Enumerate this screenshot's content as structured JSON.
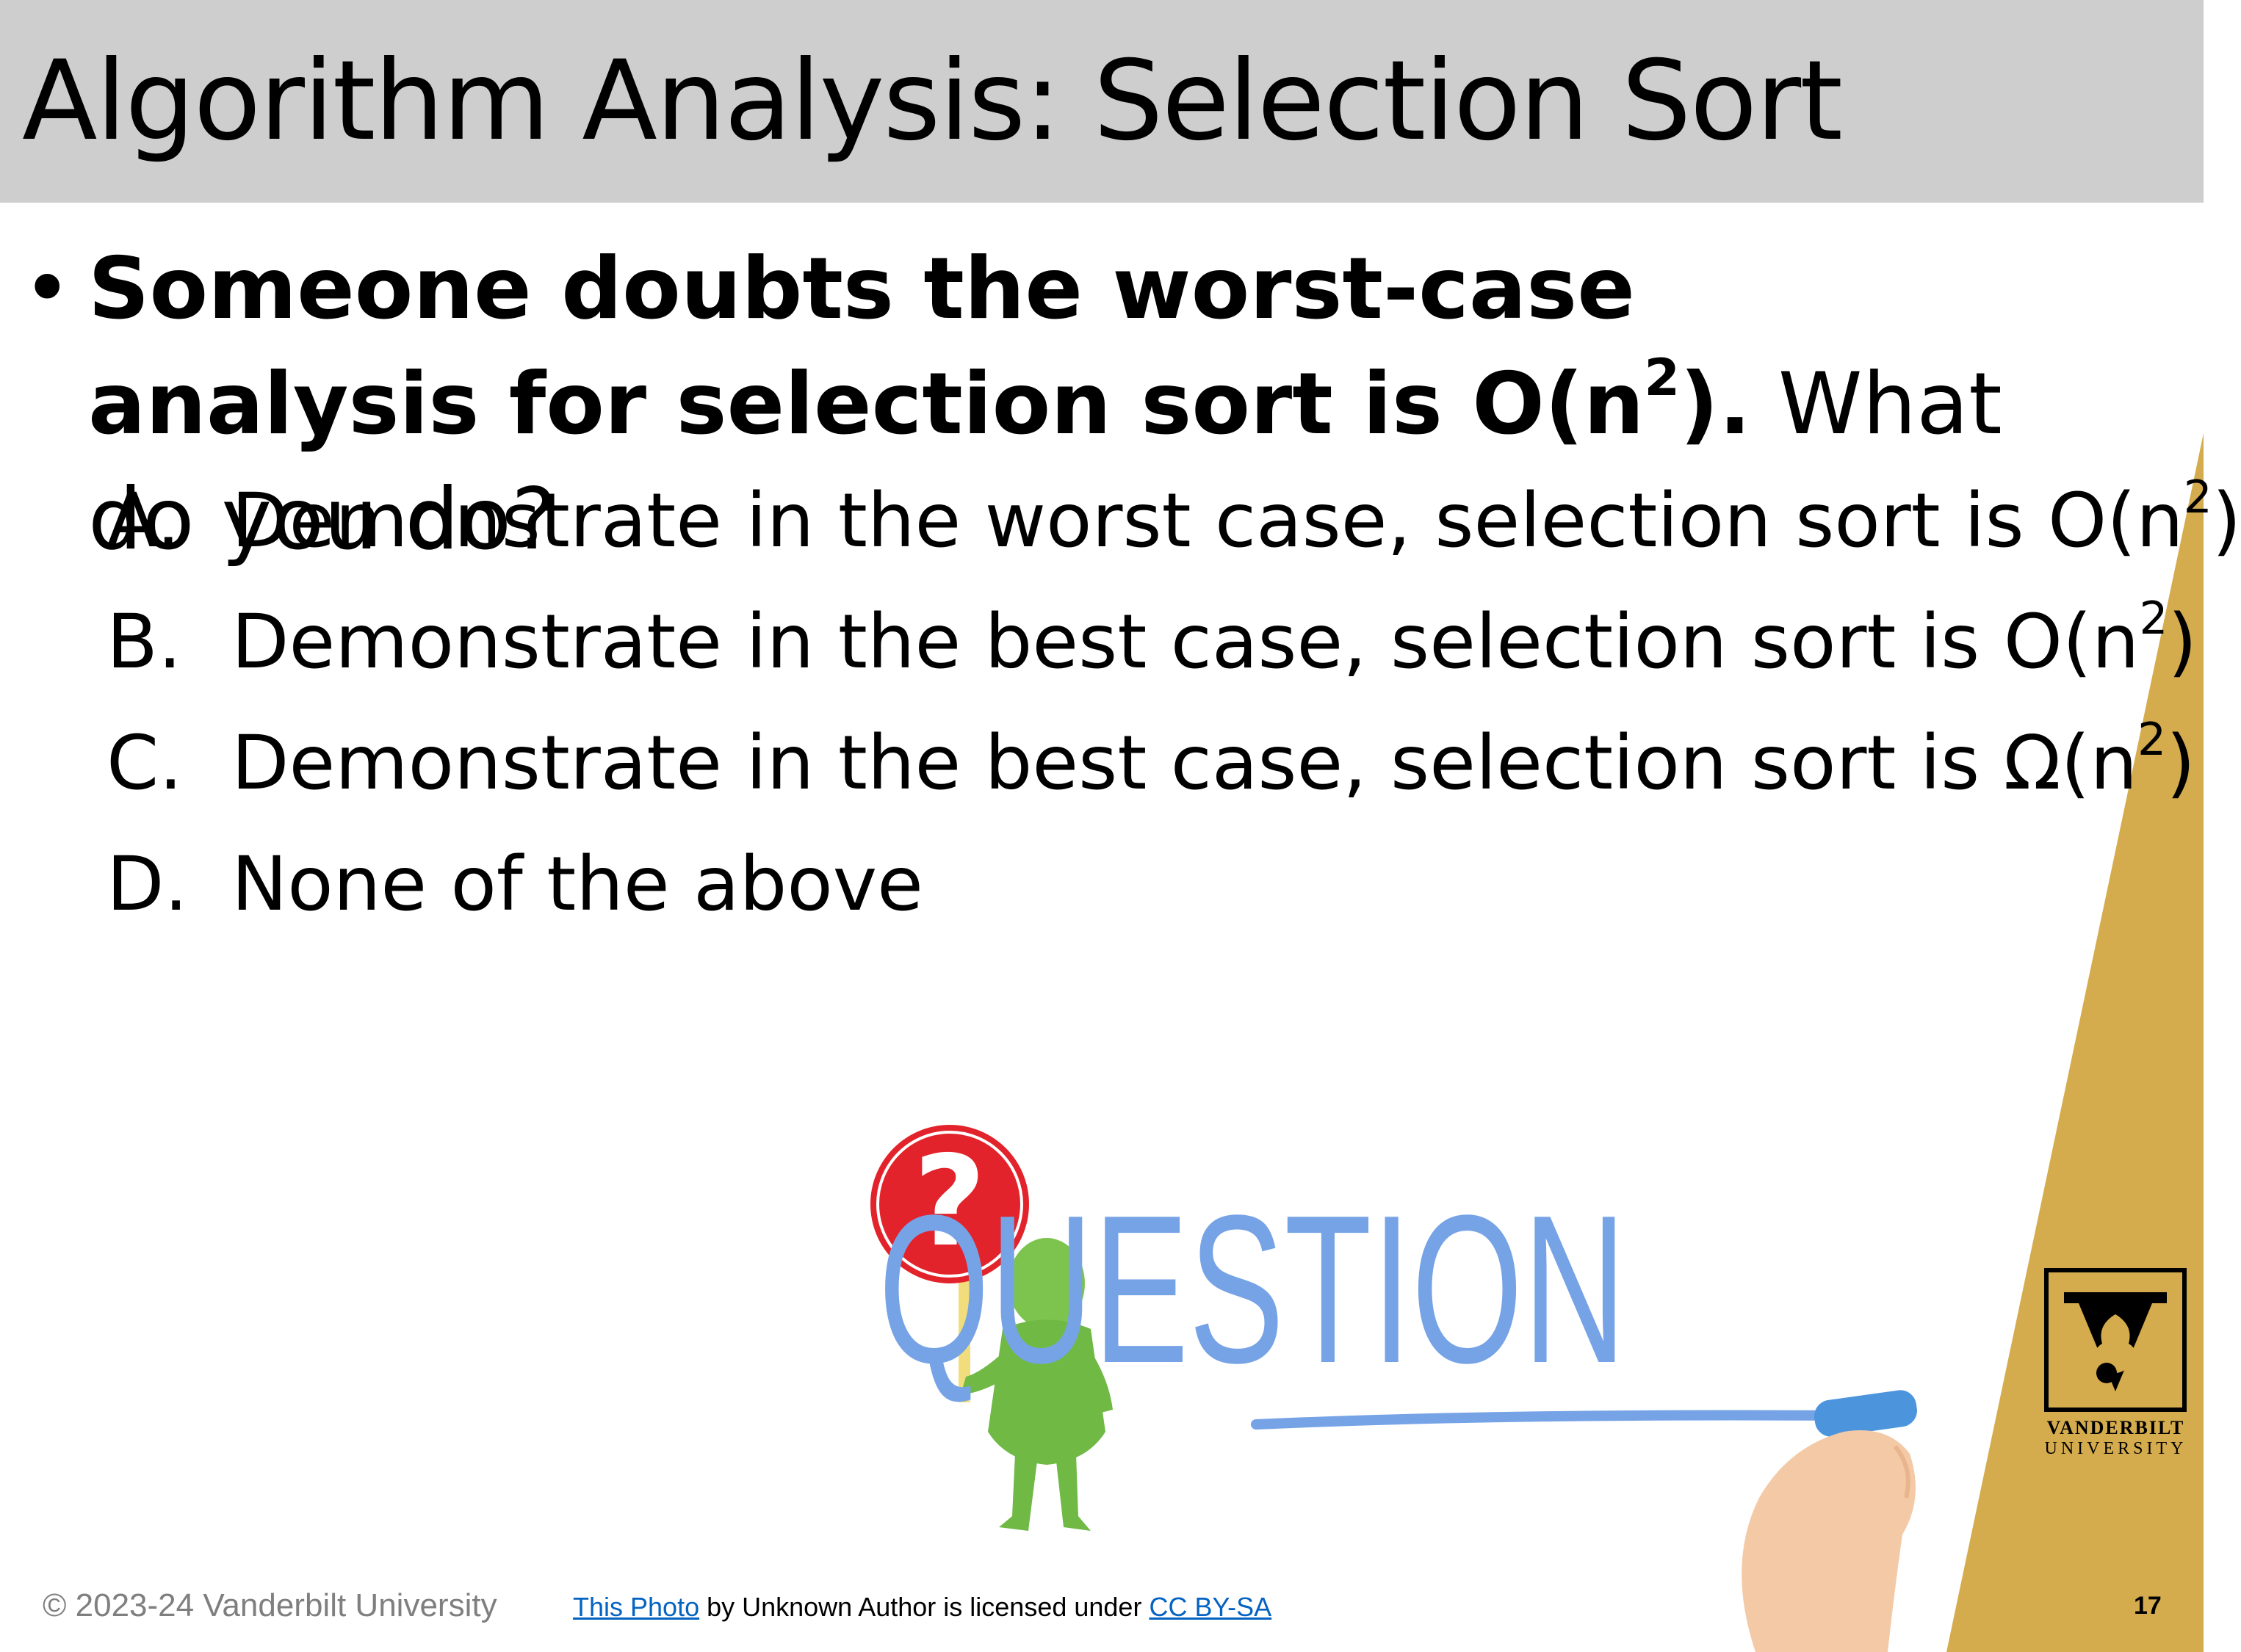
{
  "slide": {
    "title": "Algorithm Analysis: Selection Sort",
    "page_number": "17",
    "colors": {
      "title_bar": "#cfcecf",
      "gold": "#d4ac4d",
      "link": "#0563c1"
    }
  },
  "bullet": {
    "marker": "•",
    "bold_text": "Someone doubts the worst-case analysis for selection sort is O(n",
    "bold_sup": "2",
    "bold_tail": ").",
    "plain_text": " What do you do?"
  },
  "options": [
    {
      "letter": "A.",
      "text": "Demonstrate in the worst case, selection sort is O(n",
      "sup": "2",
      "tail": ")"
    },
    {
      "letter": "B.",
      "text": "Demonstrate in the best case, selection sort is O(n",
      "sup": "2",
      "tail": ")"
    },
    {
      "letter": "C.",
      "text": "Demonstrate in the best case, selection sort is Ω(n",
      "sup": "2",
      "tail": ")"
    },
    {
      "letter": "D.",
      "text": "None of the above",
      "sup": "",
      "tail": ""
    }
  ],
  "footer": {
    "copyright": "© 2023-24 Vanderbilt University",
    "attribution_link": "This Photo",
    "attribution_middle": " by Unknown Author is licensed under ",
    "license_link": "CC BY-SA"
  },
  "figure": {
    "word": "QUESTION",
    "sign_glyph": "?",
    "icons": [
      "person-with-question-sign-icon",
      "hand-with-marker-icon"
    ]
  },
  "logo": {
    "word1": "VANDERBILT",
    "word2": "UNIVERSITY",
    "icon": "vanderbilt-oak-v-icon"
  }
}
